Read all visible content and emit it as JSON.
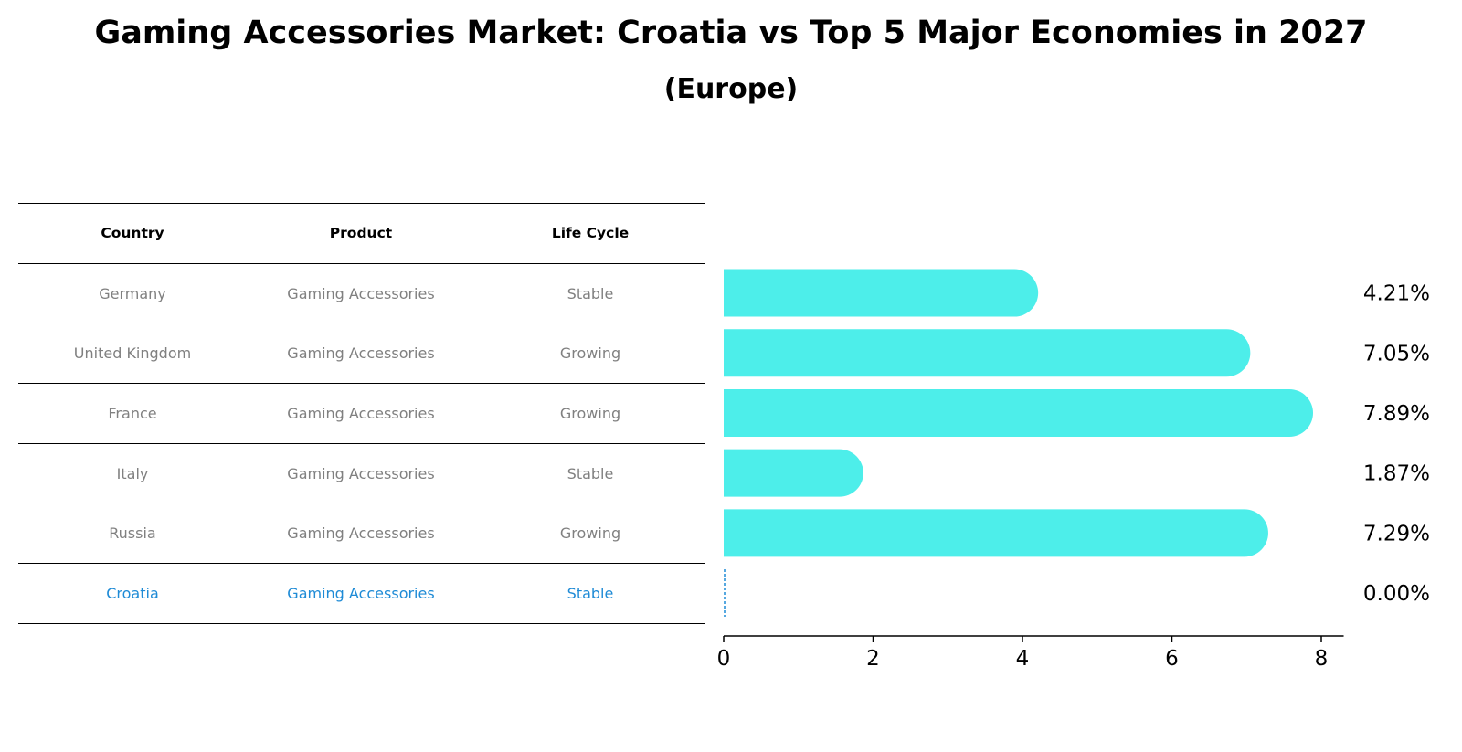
{
  "header": {
    "title": "Gaming Accessories Market: Croatia vs Top 5 Major Economies in 2027",
    "subtitle": "(Europe)"
  },
  "table": {
    "columns": [
      "Country",
      "Product",
      "Life Cycle"
    ],
    "rows": [
      {
        "country": "Germany",
        "product": "Gaming Accessories",
        "life_cycle": "Stable"
      },
      {
        "country": "United Kingdom",
        "product": "Gaming Accessories",
        "life_cycle": "Growing"
      },
      {
        "country": "France",
        "product": "Gaming Accessories",
        "life_cycle": "Growing"
      },
      {
        "country": "Italy",
        "product": "Gaming Accessories",
        "life_cycle": "Stable"
      },
      {
        "country": "Russia",
        "product": "Gaming Accessories",
        "life_cycle": "Growing"
      },
      {
        "country": "Croatia",
        "product": "Gaming Accessories",
        "life_cycle": "Stable"
      }
    ]
  },
  "colors": {
    "bar": "#4DEEEA",
    "highlight": "#1F8BD6",
    "muted_text": "#808080"
  },
  "chart_data": {
    "type": "bar",
    "orientation": "horizontal",
    "categories": [
      "Germany",
      "United Kingdom",
      "France",
      "Italy",
      "Russia",
      "Croatia"
    ],
    "values": [
      4.21,
      7.05,
      7.89,
      1.87,
      7.29,
      0.0
    ],
    "value_labels": [
      "4.21%",
      "7.05%",
      "7.89%",
      "1.87%",
      "7.29%",
      "0.00%"
    ],
    "xlim": [
      0,
      8.3
    ],
    "xticks": [
      0,
      2,
      4,
      6,
      8
    ],
    "grid": false
  }
}
